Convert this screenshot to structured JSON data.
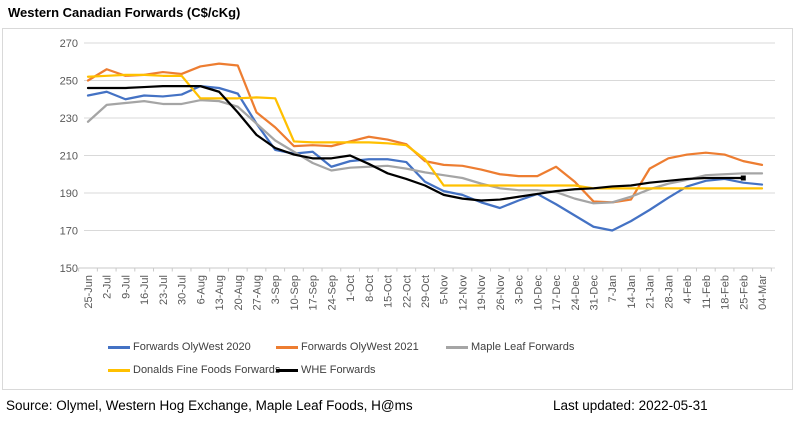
{
  "header": {
    "title": "Western Canadian Forwards (C$/cKg)"
  },
  "footer": {
    "source": "Source: Olymel, Western Hog Exchange, Maple Leaf Foods, H@ms",
    "last_updated_label": "Last updated:",
    "last_updated_value": "2022-05-31"
  },
  "chart_data": {
    "type": "line",
    "title": "Western Canadian Forwards (C$/cKg)",
    "xlabel": "",
    "ylabel": "",
    "ylim": [
      150,
      270
    ],
    "yticks": [
      270,
      250,
      230,
      210,
      190,
      170,
      150
    ],
    "grid": "horizontal",
    "legend_position": "bottom",
    "categories": [
      "25-Jun",
      "2-Jul",
      "9-Jul",
      "16-Jul",
      "23-Jul",
      "30-Jul",
      "6-Aug",
      "13-Aug",
      "20-Aug",
      "27-Aug",
      "3-Sep",
      "10-Sep",
      "17-Sep",
      "24-Sep",
      "1-Oct",
      "8-Oct",
      "15-Oct",
      "22-Oct",
      "29-Oct",
      "5-Nov",
      "12-Nov",
      "19-Nov",
      "26-Nov",
      "3-Dec",
      "10-Dec",
      "17-Dec",
      "24-Dec",
      "31-Dec",
      "7-Jan",
      "14-Jan",
      "21-Jan",
      "28-Jan",
      "4-Feb",
      "11-Feb",
      "18-Feb",
      "25-Feb",
      "04-Mar"
    ],
    "series": [
      {
        "name": "Forwards OlyWest 2020",
        "color": "#4472C4",
        "values": [
          242,
          244,
          240,
          242,
          241.5,
          242.5,
          247,
          246,
          243,
          227,
          213,
          211,
          212,
          204,
          207,
          208,
          208,
          206.5,
          196,
          191,
          189,
          185,
          182,
          186,
          189.5,
          184,
          178,
          172,
          170,
          175,
          181,
          187.5,
          193.5,
          196.5,
          197.5,
          195.5,
          194.5
        ]
      },
      {
        "name": "Forwards OlyWest 2021",
        "color": "#ED7D31",
        "values": [
          250,
          256,
          252.5,
          253,
          254.5,
          253.5,
          257.5,
          259,
          258,
          233,
          225,
          215,
          215.5,
          215,
          217.5,
          220,
          218.5,
          216,
          207,
          205,
          204.5,
          202.5,
          200,
          199,
          199,
          204,
          196,
          185.5,
          185,
          186.5,
          203,
          208.5,
          210.5,
          211.5,
          210.5,
          207,
          205
        ]
      },
      {
        "name": "Maple Leaf Forwards",
        "color": "#A5A5A5",
        "values": [
          228,
          237,
          238,
          239,
          237.5,
          237.5,
          239.5,
          239,
          236,
          227,
          218,
          212,
          206,
          202,
          203.5,
          204,
          204.5,
          203,
          201,
          199.5,
          198,
          195,
          192.5,
          191.5,
          191.5,
          190.5,
          187,
          184.5,
          185,
          188,
          192,
          195,
          197,
          199.5,
          200,
          200.5,
          200.5
        ]
      },
      {
        "name": "Donalds Fine Foods Forwards",
        "color": "#FFC000",
        "values": [
          252,
          252.5,
          253,
          253,
          252.5,
          252.5,
          240.5,
          240.5,
          240.5,
          241,
          240.5,
          217.5,
          217,
          217,
          217,
          217,
          216.5,
          215.5,
          208,
          194,
          194,
          194,
          194,
          194,
          194,
          194,
          194,
          192.5,
          192.5,
          192.5,
          192.5,
          192.5,
          192.5,
          192.5,
          192.5,
          192.5,
          192.5
        ]
      },
      {
        "name": "WHE Forwards",
        "color": "#000000",
        "end_marker": true,
        "values": [
          246,
          246,
          246,
          246.5,
          247,
          247,
          247,
          244,
          233,
          221,
          214,
          210.5,
          208.5,
          208.5,
          210,
          205.5,
          200.5,
          197.5,
          194,
          189,
          187,
          186,
          186.5,
          188,
          189.5,
          191,
          192,
          192.5,
          193.5,
          194,
          195.5,
          196.5,
          197.5,
          198,
          198,
          198,
          null
        ]
      }
    ]
  }
}
